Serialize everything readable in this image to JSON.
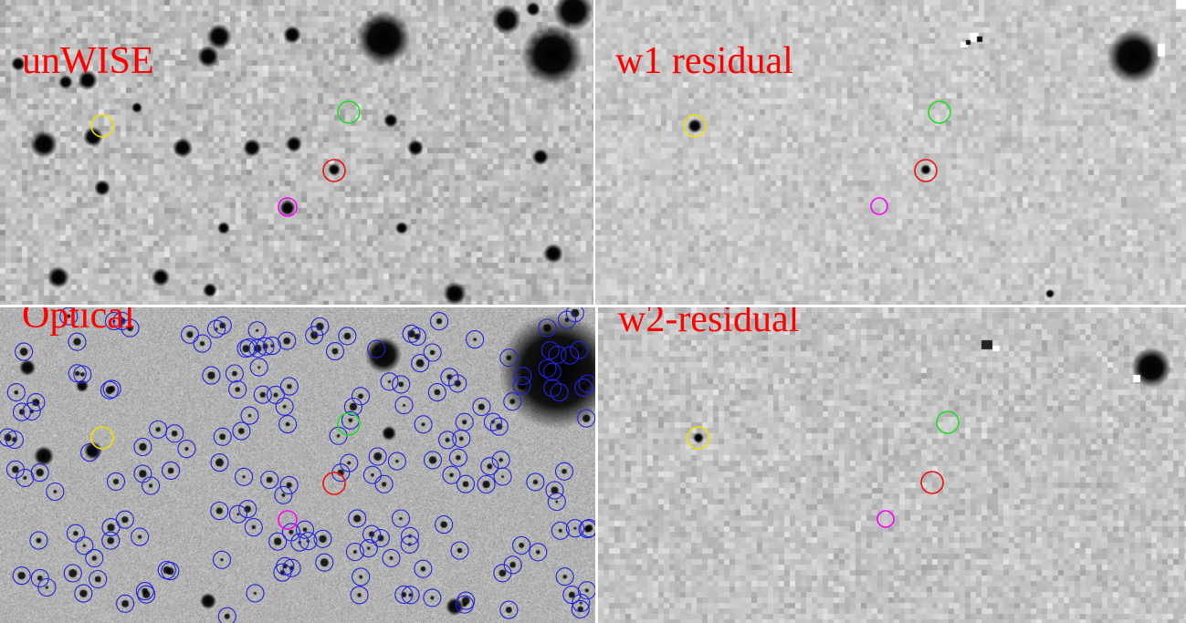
{
  "panels": {
    "unwise": {
      "label": "unWISE"
    },
    "w1": {
      "label": "w1 residual"
    },
    "optical": {
      "label": "Optical"
    },
    "w2": {
      "label": "w2-residual"
    }
  },
  "marker_colors": {
    "yellow": "#f0e000",
    "green": "#22dd22",
    "red": "#ee1111",
    "magenta": "#ff00ff",
    "blue": "#2222dd"
  },
  "label_color": "#ff0000"
}
